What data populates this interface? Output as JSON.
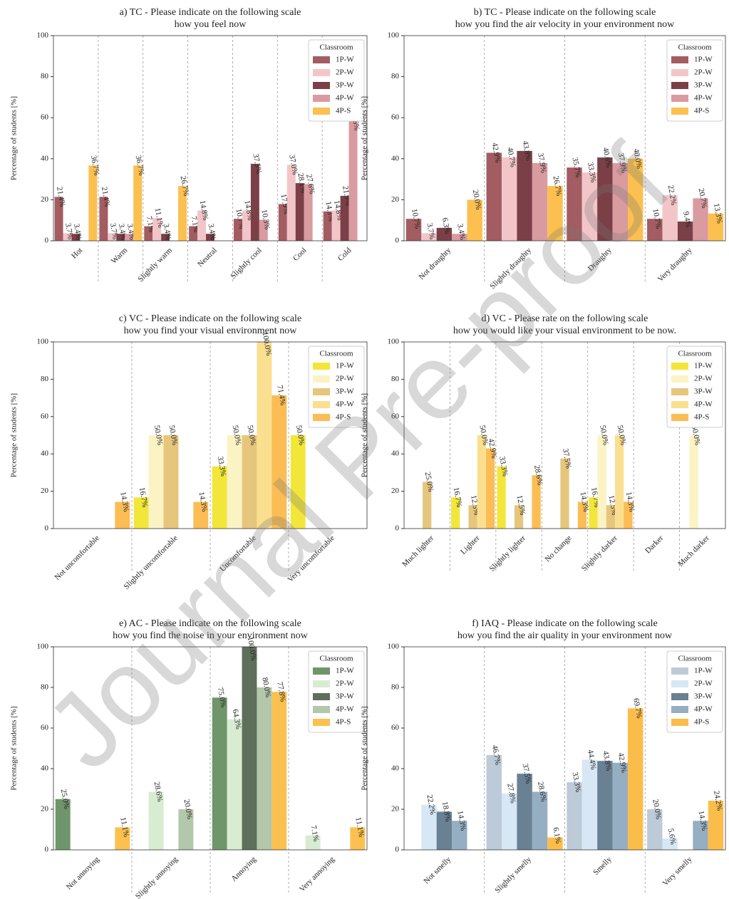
{
  "watermark": "Journal Pre-proof",
  "chart_data": [
    {
      "type": "bar",
      "title": [
        "a) TC - Please indicate on the following scale",
        "how you feel now"
      ],
      "ylabel": "Percentage of students [%]",
      "legend_title": "Classroom",
      "legend": "upper right",
      "grid": true,
      "ylim": [
        0,
        100
      ],
      "yticks": [
        0,
        20,
        40,
        60,
        80,
        100
      ],
      "categories": [
        "Hot",
        "Warm",
        "Slightly warm",
        "Neutral",
        "Slightly cool",
        "Cool",
        "Cold"
      ],
      "series": [
        {
          "name": "1P-W",
          "color": "#a35c61",
          "values": [
            21.4,
            21.4,
            7.1,
            7.1,
            10.7,
            17.9,
            14.3
          ],
          "value_labels": [
            "21.4%",
            "21.4%",
            "7.1%",
            "7.1%",
            "10.7%",
            "17.9%",
            "14.3%"
          ]
        },
        {
          "name": "2P-W",
          "color": "#f2c6c8",
          "values": [
            3.7,
            3.7,
            11.1,
            14.8,
            14.8,
            37.0,
            14.8
          ],
          "value_labels": [
            "3.7%",
            "3.7%",
            "11.1%",
            "14.8%",
            "14.8%",
            "37.0%",
            "14.8%"
          ]
        },
        {
          "name": "3P-W",
          "color": "#7b4047",
          "values": [
            3.4,
            3.4,
            3.4,
            3.4,
            37.5,
            28.1,
            21.9
          ],
          "value_labels": [
            "3.4%",
            "3.4%",
            "3.4%",
            "3.4%",
            "37.5%",
            "28.1%",
            "21.9%"
          ]
        },
        {
          "name": "4P-W",
          "color": "#d99ba0",
          "values": [
            0,
            3.4,
            0,
            0,
            10.3,
            27.6,
            58.6
          ],
          "value_labels": [
            null,
            "3.4%",
            null,
            null,
            "10.3%",
            "27.6%",
            "58.6%"
          ]
        },
        {
          "name": "4P-S",
          "color": "#fbc04f",
          "values": [
            36.7,
            36.7,
            26.7,
            0,
            0,
            0,
            0
          ],
          "value_labels": [
            "36.7%",
            "36.7%",
            "26.7%",
            null,
            null,
            null,
            null
          ]
        }
      ]
    },
    {
      "type": "bar",
      "title": [
        "b) TC - Please indicate on the following scale",
        "how you find the air velocity in your environment now"
      ],
      "ylabel": "Percentage of students [%]",
      "legend_title": "Classroom",
      "legend": "upper right",
      "grid": true,
      "ylim": [
        0,
        100
      ],
      "yticks": [
        0,
        20,
        40,
        60,
        80,
        100
      ],
      "categories": [
        "Not draughty",
        "Slightly draughty",
        "Draughty",
        "Very draughty"
      ],
      "series": [
        {
          "name": "1P-W",
          "color": "#a35c61",
          "values": [
            10.7,
            42.9,
            35.7,
            10.7
          ],
          "value_labels": [
            "10.7%",
            "42.9%",
            "35.7%",
            "10.7%"
          ]
        },
        {
          "name": "2P-W",
          "color": "#f2c6c8",
          "values": [
            3.7,
            40.7,
            33.3,
            22.2
          ],
          "value_labels": [
            "3.7%",
            "40.7%",
            "33.3%",
            "22.2%"
          ]
        },
        {
          "name": "3P-W",
          "color": "#7b4047",
          "values": [
            6.3,
            43.8,
            40.6,
            9.4
          ],
          "value_labels": [
            "6.3%",
            "43.8%",
            "40.6%",
            "9.4%"
          ]
        },
        {
          "name": "4P-W",
          "color": "#d99ba0",
          "values": [
            3.4,
            37.9,
            37.9,
            20.7
          ],
          "value_labels": [
            "3.4%",
            "37.9%",
            "37.9%",
            "20.7%"
          ]
        },
        {
          "name": "4P-S",
          "color": "#fbc04f",
          "values": [
            20.0,
            26.7,
            40.0,
            13.3
          ],
          "value_labels": [
            "20.0%",
            "26.7%",
            "40.0%",
            "13.3%"
          ]
        }
      ]
    },
    {
      "type": "bar",
      "title": [
        "c) VC - Please indicate on the following scale",
        "how you find your visual environment now"
      ],
      "ylabel": "Percentage of students [%]",
      "legend_title": "Classroom",
      "legend": "upper right",
      "grid": true,
      "ylim": [
        0,
        100
      ],
      "yticks": [
        0,
        20,
        40,
        60,
        80,
        100
      ],
      "categories": [
        "Not uncomfortable",
        "Slightly uncomfortable",
        "Uncomfortable",
        "Very uncomfortable"
      ],
      "series": [
        {
          "name": "1P-W",
          "color": "#f2e63a",
          "values": [
            0,
            16.7,
            33.3,
            50.0
          ],
          "value_labels": [
            null,
            "16.7%",
            "33.3%",
            "50.0%"
          ]
        },
        {
          "name": "2P-W",
          "color": "#fbf3c4",
          "values": [
            0,
            50.0,
            50.0,
            0
          ],
          "value_labels": [
            null,
            "50.0%",
            "50.0%",
            null
          ]
        },
        {
          "name": "3P-W",
          "color": "#e6c67c",
          "values": [
            0,
            50.0,
            50.0,
            0
          ],
          "value_labels": [
            null,
            "50.0%",
            "50.0%",
            null
          ]
        },
        {
          "name": "4P-W",
          "color": "#fbdf90",
          "values": [
            0,
            0,
            100.0,
            0
          ],
          "value_labels": [
            null,
            null,
            "100.0%",
            null
          ]
        },
        {
          "name": "4P-S",
          "color": "#fbbd54",
          "values": [
            14.3,
            14.3,
            71.4,
            0
          ],
          "value_labels": [
            "14.3%",
            "14.3%",
            "71.4%",
            null
          ]
        }
      ]
    },
    {
      "type": "bar",
      "title": [
        "d) VC - Please rate on the following scale",
        "how you would like your visual environment to be now."
      ],
      "ylabel": "Percentage of students [%]",
      "legend_title": "Classroom",
      "legend": "upper right",
      "grid": true,
      "ylim": [
        0,
        100
      ],
      "yticks": [
        0,
        20,
        40,
        60,
        80,
        100
      ],
      "categories": [
        "Much lighter",
        "Lighter",
        "Slightly lighter",
        "No change",
        "Slightly darker",
        "Darker",
        "Much darker"
      ],
      "series": [
        {
          "name": "1P-W",
          "color": "#f2e63a",
          "values": [
            0,
            16.7,
            33.3,
            0,
            16.7,
            0,
            0
          ],
          "value_labels": [
            null,
            "16.7%",
            "33.3%",
            null,
            "16.7%",
            null,
            null
          ]
        },
        {
          "name": "2P-W",
          "color": "#fbf3c4",
          "values": [
            0,
            0,
            0,
            0,
            50.0,
            0,
            50.0
          ],
          "value_labels": [
            null,
            null,
            null,
            null,
            "50.0%",
            null,
            "50.0%"
          ]
        },
        {
          "name": "3P-W",
          "color": "#e6c67c",
          "values": [
            25.0,
            12.5,
            12.5,
            37.5,
            12.5,
            0,
            0
          ],
          "value_labels": [
            "25.0%",
            "12.5%",
            "12.5%",
            "37.5%",
            "12.5%",
            null,
            null
          ]
        },
        {
          "name": "4P-W",
          "color": "#fbdf90",
          "values": [
            0,
            50.0,
            0,
            0,
            50.0,
            0,
            0
          ],
          "value_labels": [
            null,
            "50.0%",
            null,
            null,
            "50.0%",
            null,
            null
          ]
        },
        {
          "name": "4P-S",
          "color": "#fbbd54",
          "values": [
            0,
            42.9,
            28.6,
            14.3,
            14.3,
            0,
            0
          ],
          "value_labels": [
            null,
            "42.9%",
            "28.6%",
            "14.3%",
            "14.3%",
            null,
            null
          ]
        }
      ]
    },
    {
      "type": "bar",
      "title": [
        "e) AC - Please indicate on the following scale",
        "how you find the noise in your environment now"
      ],
      "ylabel": "Percentage of students [%]",
      "legend_title": "Classroom",
      "legend": "upper right",
      "grid": true,
      "ylim": [
        0,
        100
      ],
      "yticks": [
        0,
        20,
        40,
        60,
        80,
        100
      ],
      "categories": [
        "Not annoying",
        "Slightly annoying",
        "Annoying",
        "Very annoying"
      ],
      "series": [
        {
          "name": "1P-W",
          "color": "#6f956a",
          "values": [
            25.0,
            0,
            75.0,
            0
          ],
          "value_labels": [
            "25.0%",
            null,
            "75.0%",
            null
          ]
        },
        {
          "name": "2P-W",
          "color": "#d8ecd2",
          "values": [
            0,
            28.6,
            64.3,
            7.1
          ],
          "value_labels": [
            null,
            "28.6%",
            "64.3%",
            "7.1%"
          ]
        },
        {
          "name": "3P-W",
          "color": "#5e6f5b",
          "values": [
            0,
            0,
            100.0,
            0
          ],
          "value_labels": [
            null,
            null,
            "100.0%",
            null
          ]
        },
        {
          "name": "4P-W",
          "color": "#b3c7aa",
          "values": [
            0,
            20.0,
            80.0,
            0
          ],
          "value_labels": [
            null,
            "20.0%",
            "80.0%",
            null
          ]
        },
        {
          "name": "4P-S",
          "color": "#fbc04f",
          "values": [
            11.1,
            0,
            77.8,
            11.1
          ],
          "value_labels": [
            "11.1%",
            null,
            "77.8%",
            "11.1%"
          ]
        }
      ]
    },
    {
      "type": "bar",
      "title": [
        "f) IAQ - Please indicate on the following scale",
        "how you find the air quality in your environment now"
      ],
      "ylabel": "Percentage of students [%]",
      "legend_title": "Classroom",
      "legend": "upper right",
      "grid": true,
      "ylim": [
        0,
        100
      ],
      "yticks": [
        0,
        20,
        40,
        60,
        80,
        100
      ],
      "categories": [
        "Not smelly",
        "Slightly smelly",
        "Smelly",
        "Very smelly"
      ],
      "series": [
        {
          "name": "1P-W",
          "color": "#bdcbd8",
          "values": [
            0,
            46.7,
            33.3,
            20.0
          ],
          "value_labels": [
            null,
            "46.7%",
            "33.3%",
            "20.0%"
          ]
        },
        {
          "name": "2P-W",
          "color": "#d8e7f5",
          "values": [
            22.2,
            27.8,
            44.4,
            5.6
          ],
          "value_labels": [
            "22.2%",
            "27.8%",
            "44.4%",
            "5.6%"
          ]
        },
        {
          "name": "3P-W",
          "color": "#6a8093",
          "values": [
            18.8,
            37.5,
            43.8,
            0
          ],
          "value_labels": [
            "18.8%",
            "37.5%",
            "43.8%",
            null
          ]
        },
        {
          "name": "4P-W",
          "color": "#96aec2",
          "values": [
            14.3,
            28.6,
            42.9,
            14.3
          ],
          "value_labels": [
            "14.3%",
            "28.6%",
            "42.9%",
            "14.3%"
          ]
        },
        {
          "name": "4P-S",
          "color": "#fbbd4a",
          "values": [
            0,
            6.1,
            69.7,
            24.2
          ],
          "value_labels": [
            null,
            "6.1%",
            "69.7%",
            "24.2%"
          ]
        }
      ]
    }
  ]
}
